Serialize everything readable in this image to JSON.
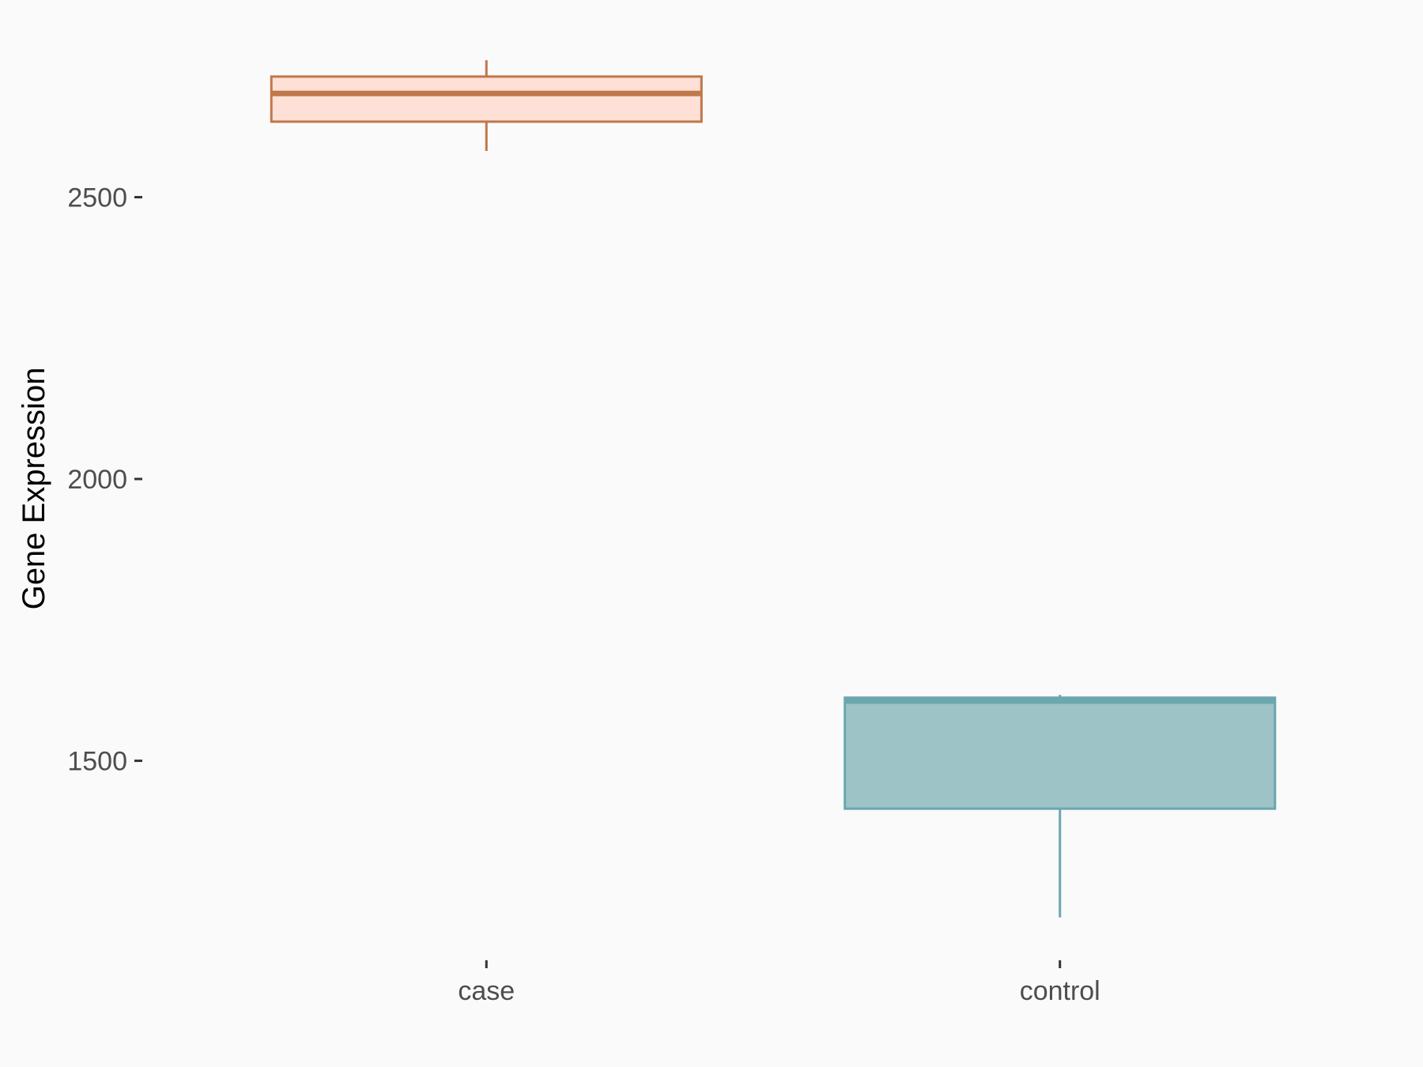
{
  "chart_data": {
    "type": "boxplot",
    "title": "",
    "xlabel": "",
    "ylabel": "Gene Expression",
    "categories": [
      "case",
      "control"
    ],
    "boxes": [
      {
        "category": "case",
        "whisker_low": 2582,
        "q1": 2634,
        "median": 2684,
        "q3": 2714,
        "whisker_high": 2743,
        "fill": "#FFE0D6",
        "stroke": "#C0774A"
      },
      {
        "category": "control",
        "whisker_low": 1222,
        "q1": 1415,
        "median": 1606,
        "q3": 1612,
        "whisker_high": 1617,
        "fill": "#9DC3C7",
        "stroke": "#6BA7AE"
      }
    ],
    "y_ticks": [
      1500,
      2000,
      2500
    ],
    "y_tick_labels": [
      "1500",
      "2000",
      "2500"
    ],
    "ylim": [
      1146,
      2819
    ],
    "grid": false,
    "legend": "none",
    "background": "#FAFAFA"
  }
}
